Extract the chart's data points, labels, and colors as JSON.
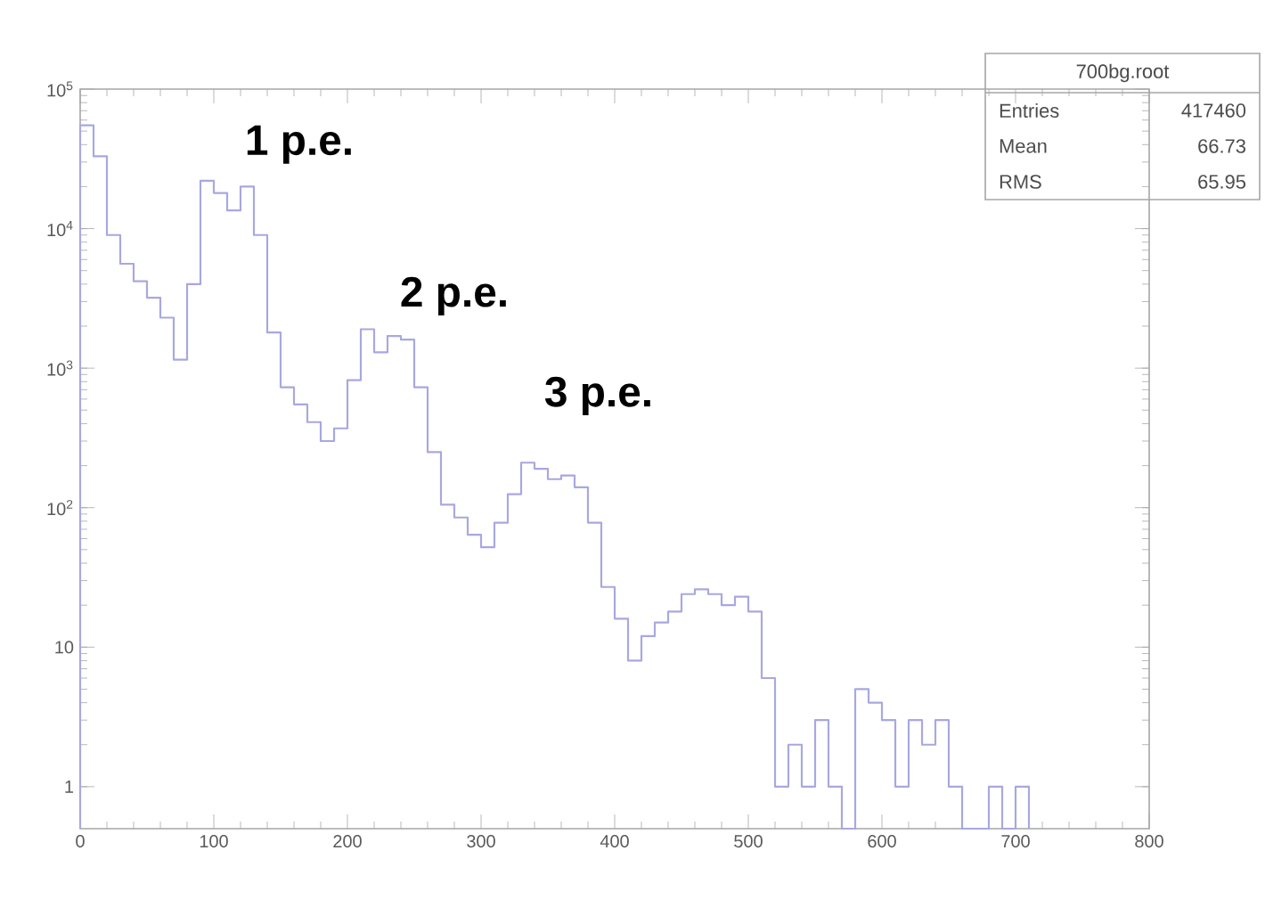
{
  "chart_data": {
    "type": "histogram",
    "bins": [
      0,
      10,
      20,
      30,
      40,
      50,
      60,
      70,
      80,
      90,
      100,
      110,
      120,
      130,
      140,
      150,
      160,
      170,
      180,
      190,
      200,
      210,
      220,
      230,
      240,
      250,
      260,
      270,
      280,
      290,
      300,
      310,
      320,
      330,
      340,
      350,
      360,
      370,
      380,
      390,
      400,
      410,
      420,
      430,
      440,
      450,
      460,
      470,
      480,
      490,
      500,
      510,
      520,
      530,
      540,
      550,
      560,
      570,
      580,
      590,
      600,
      610,
      620,
      630,
      640,
      650,
      660,
      670,
      680,
      690,
      700,
      710
    ],
    "values": [
      55000,
      33000,
      9000,
      5600,
      4200,
      3200,
      2300,
      1150,
      4000,
      22000,
      18000,
      13500,
      20000,
      9000,
      1800,
      730,
      550,
      410,
      300,
      370,
      820,
      1900,
      1300,
      1700,
      1600,
      730,
      250,
      105,
      85,
      64,
      52,
      78,
      125,
      210,
      190,
      160,
      170,
      140,
      78,
      27,
      16,
      8,
      12,
      15,
      18,
      24,
      26,
      24,
      20,
      23,
      18,
      6,
      1,
      2,
      1,
      3,
      1,
      null,
      5,
      4,
      3,
      1,
      3,
      2,
      3,
      1,
      null,
      null,
      1,
      null,
      1
    ],
    "color": "#a8a8e0",
    "log": "y",
    "xlim": [
      0,
      800
    ],
    "xticks": [
      0,
      100,
      200,
      300,
      400,
      500,
      600,
      700,
      800
    ],
    "ylim": [
      0.5,
      100000
    ],
    "yticks": [
      1,
      10,
      {
        "value": 100,
        "label": "10$^{2}$"
      },
      {
        "value": 1000,
        "label": "10$^{3}$"
      },
      {
        "value": 10000,
        "label": "10$^{4}$"
      },
      {
        "value": 100000,
        "label": "10$^{5}$"
      }
    ],
    "annotations": [
      "700bg.root",
      "Entries",
      "417460",
      "Mean",
      "66.73",
      "RMS",
      "65.95",
      "1 p.e.",
      "2 p.e.",
      "3 p.e."
    ]
  }
}
